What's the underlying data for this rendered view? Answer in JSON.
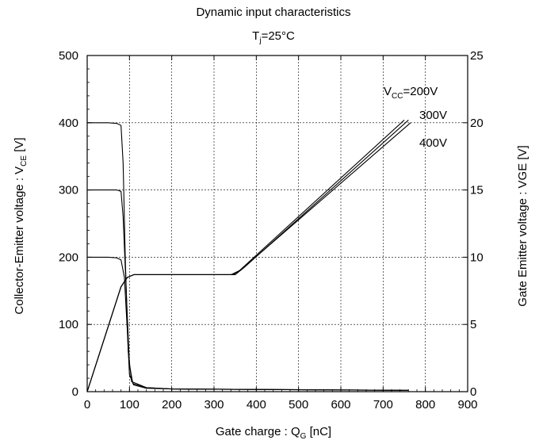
{
  "chart_data": {
    "type": "line",
    "title": "Dynamic input characteristics",
    "subtitle": {
      "main": "T",
      "sub": "j",
      "rest": "=25°C"
    },
    "xlabel": {
      "main": "Gate charge : Q",
      "sub": "G",
      "rest": " [nC]"
    },
    "ylabel_left": {
      "main": "Collector-Emitter voltage : V",
      "sub": "CE",
      "rest": " [V]"
    },
    "ylabel_right": "Gate Emitter voltage : VGE [V]",
    "xlim": [
      0,
      900
    ],
    "ylim_left": [
      0,
      500
    ],
    "ylim_right": [
      0,
      25
    ],
    "x_ticks": [
      "0",
      "100",
      "200",
      "300",
      "400",
      "500",
      "600",
      "700",
      "800",
      "900"
    ],
    "y_left_ticks": [
      "0",
      "100",
      "200",
      "300",
      "400",
      "500"
    ],
    "y_right_ticks": [
      "0",
      "5",
      "10",
      "15",
      "20",
      "25"
    ],
    "grid": true,
    "annotations": [
      {
        "main": "V",
        "sub": "CC",
        "rest": "=200V"
      },
      {
        "main": "300V"
      },
      {
        "main": "400V"
      }
    ],
    "series": [
      {
        "axis": "left",
        "color": "#000000",
        "x": [
          0,
          50,
          70,
          80,
          88,
          95,
          100,
          110,
          140,
          200,
          760
        ],
        "y": [
          200,
          200,
          199,
          196,
          170,
          90,
          25,
          10,
          5,
          4,
          2
        ]
      },
      {
        "axis": "left",
        "color": "#000000",
        "x": [
          0,
          50,
          70,
          80,
          85,
          93,
          100,
          108,
          140,
          200,
          760
        ],
        "y": [
          300,
          300,
          300,
          298,
          260,
          140,
          40,
          12,
          6,
          4,
          2
        ]
      },
      {
        "axis": "left",
        "color": "#000000",
        "x": [
          0,
          50,
          70,
          80,
          85,
          90,
          97,
          105,
          140,
          200,
          760
        ],
        "y": [
          400,
          400,
          399,
          396,
          340,
          200,
          60,
          15,
          6,
          4,
          2
        ]
      },
      {
        "axis": "right",
        "color": "#000000",
        "x": [
          0,
          80,
          95,
          110,
          340,
          360,
          750
        ],
        "y": [
          0,
          7.8,
          8.5,
          8.7,
          8.7,
          9.0,
          20.2
        ]
      },
      {
        "axis": "right",
        "color": "#000000",
        "x": [
          0,
          80,
          95,
          110,
          350,
          370,
          760
        ],
        "y": [
          0,
          7.8,
          8.5,
          8.7,
          8.7,
          9.2,
          20.2
        ]
      },
      {
        "axis": "right",
        "color": "#000000",
        "x": [
          0,
          80,
          95,
          110,
          345,
          365,
          765
        ],
        "y": [
          0,
          7.8,
          8.5,
          8.7,
          8.7,
          9.1,
          20.0
        ]
      }
    ]
  }
}
